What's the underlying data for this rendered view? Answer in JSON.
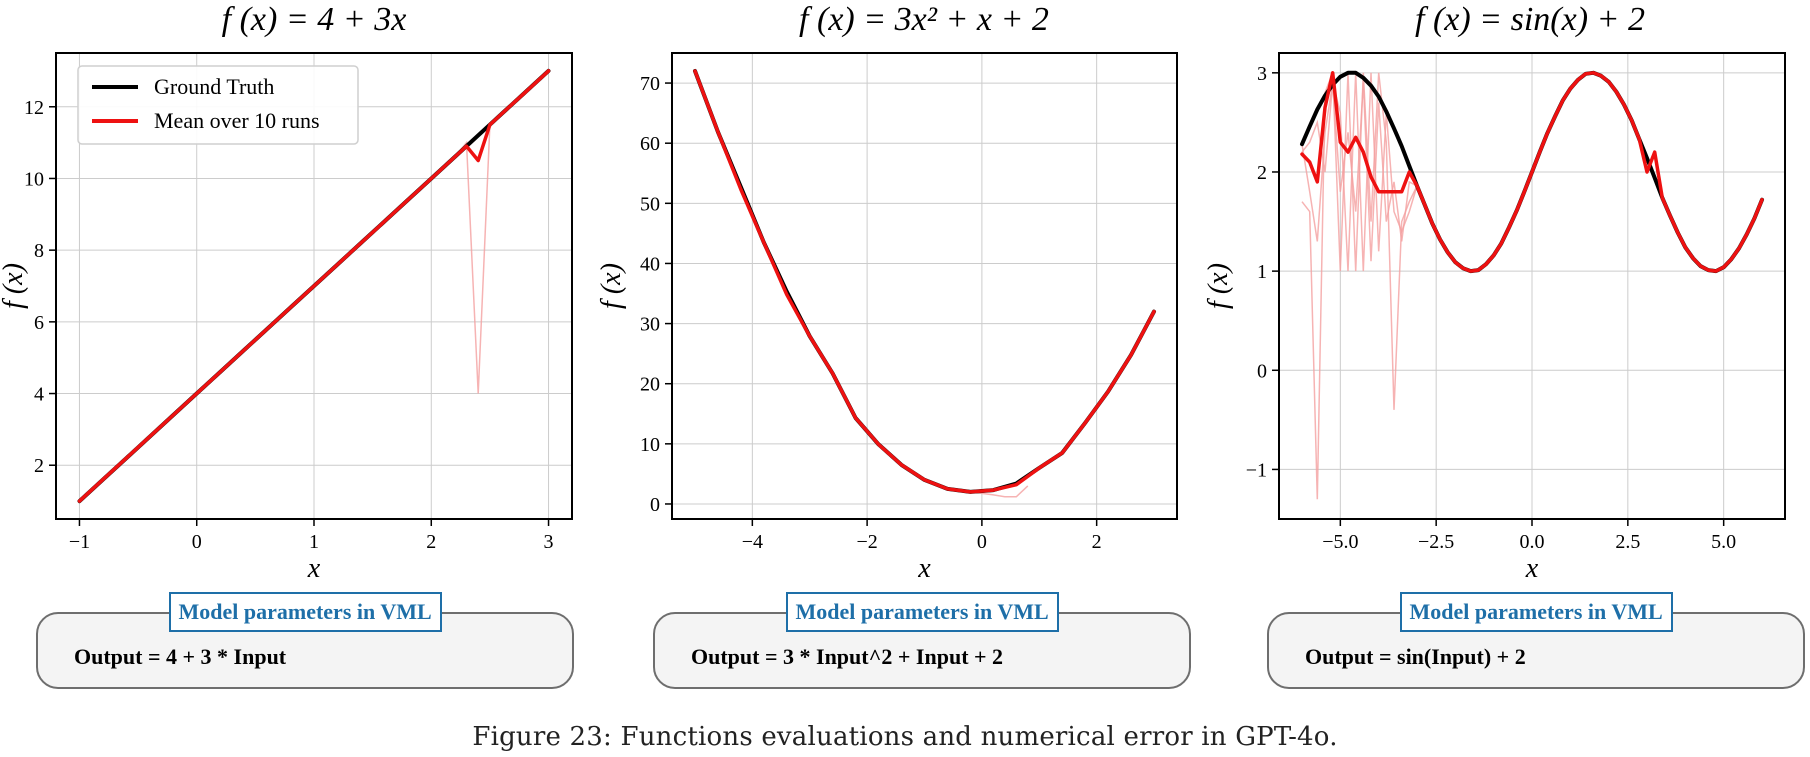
{
  "chart_data": [
    {
      "type": "line",
      "title_prefix": "f (x) = ",
      "title_formula": "4 + 3x",
      "xlabel": "x",
      "ylabel": "f (x)",
      "xlim": [
        -1.2,
        3.2
      ],
      "ylim": [
        0.5,
        13.5
      ],
      "xticks": [
        -1,
        0,
        1,
        2,
        3
      ],
      "yticks": [
        2,
        4,
        6,
        8,
        10,
        12
      ],
      "xtick_labels": [
        "−1",
        "0",
        "1",
        "2",
        "3"
      ],
      "ytick_labels": [
        "2",
        "4",
        "6",
        "8",
        "10",
        "12"
      ],
      "grid": true,
      "legend": {
        "placement": "top-left",
        "entries": [
          {
            "label": "Ground Truth",
            "color": "#000000"
          },
          {
            "label": "Mean over 10 runs",
            "color": "#ee1111"
          }
        ]
      },
      "series": [
        {
          "name": "Ground Truth",
          "color": "#000000",
          "x": [
            -1,
            -0.8,
            -0.6,
            -0.4,
            -0.2,
            0,
            0.2,
            0.4,
            0.6,
            0.8,
            1,
            1.2,
            1.4,
            1.6,
            1.8,
            2,
            2.2,
            2.4,
            2.6,
            2.8,
            3
          ],
          "y": [
            1,
            1.6,
            2.2,
            2.8,
            3.4,
            4,
            4.6,
            5.2,
            5.8,
            6.4,
            7,
            7.6,
            8.2,
            8.8,
            9.4,
            10,
            10.6,
            11.2,
            11.8,
            12.4,
            13
          ]
        },
        {
          "name": "Mean over 10 runs",
          "color": "#ee1111",
          "x": [
            -1,
            -0.8,
            -0.6,
            -0.4,
            -0.2,
            0,
            0.2,
            0.4,
            0.6,
            0.8,
            1,
            1.2,
            1.4,
            1.6,
            1.8,
            2,
            2.2,
            2.3,
            2.4,
            2.5,
            2.6,
            2.8,
            3
          ],
          "y": [
            1,
            1.6,
            2.2,
            2.8,
            3.4,
            4,
            4.6,
            5.2,
            5.8,
            6.4,
            7,
            7.6,
            8.2,
            8.8,
            9.4,
            10,
            10.6,
            10.9,
            10.5,
            11.5,
            11.8,
            12.4,
            13
          ]
        }
      ],
      "runs": [
        {
          "x": [
            2.2,
            2.3,
            2.4,
            2.5,
            2.6
          ],
          "y": [
            10.6,
            11.0,
            4.0,
            11.5,
            11.8
          ]
        }
      ],
      "parameters_title": "Model parameters in VML",
      "parameters_text": "Output = 4 + 3 * Input"
    },
    {
      "type": "line",
      "title_prefix": "f (x) = ",
      "title_formula": "3x² + x + 2",
      "xlabel": "x",
      "ylabel": "f (x)",
      "xlim": [
        -5.4,
        3.4
      ],
      "ylim": [
        -2.5,
        75
      ],
      "xticks": [
        -4,
        -2,
        0,
        2
      ],
      "yticks": [
        0,
        10,
        20,
        30,
        40,
        50,
        60,
        70
      ],
      "xtick_labels": [
        "−4",
        "−2",
        "0",
        "2"
      ],
      "ytick_labels": [
        "0",
        "10",
        "20",
        "30",
        "40",
        "50",
        "60",
        "70"
      ],
      "grid": true,
      "series": [
        {
          "name": "Ground Truth",
          "color": "#000000",
          "x": [
            -5,
            -4.6,
            -4.2,
            -3.8,
            -3.4,
            -3,
            -2.6,
            -2.2,
            -1.8,
            -1.4,
            -1,
            -0.6,
            -0.2,
            0.2,
            0.6,
            1,
            1.4,
            1.8,
            2.2,
            2.6,
            3
          ],
          "y": [
            72,
            61.9,
            52.7,
            43.5,
            35.3,
            27.9,
            21.7,
            14.3,
            9.9,
            6.5,
            4,
            2.5,
            2.0,
            2.3,
            3.4,
            6.0,
            8.5,
            13.5,
            18.7,
            24.8,
            32
          ]
        },
        {
          "name": "Mean over 10 runs",
          "color": "#ee1111",
          "x": [
            -5,
            -4.6,
            -4.2,
            -3.8,
            -3.4,
            -3,
            -2.6,
            -2.2,
            -1.8,
            -1.4,
            -1,
            -0.6,
            -0.2,
            0.2,
            0.6,
            1,
            1.4,
            1.8,
            2.2,
            2.6,
            3
          ],
          "y": [
            72,
            61.9,
            52.3,
            43.5,
            34.8,
            27.9,
            21.7,
            14.3,
            9.9,
            6.5,
            4,
            2.5,
            2.0,
            2.3,
            3.2,
            6.0,
            8.5,
            13.5,
            18.7,
            24.8,
            32
          ]
        }
      ],
      "runs": [
        {
          "x": [
            -0.2,
            0.2,
            0.4,
            0.6,
            0.8
          ],
          "y": [
            2.0,
            1.5,
            1.2,
            1.2,
            3.0
          ]
        }
      ],
      "parameters_title": "Model parameters in VML",
      "parameters_text": "Output = 3 * Input^2 + Input + 2"
    },
    {
      "type": "line",
      "title_prefix": "f (x) = ",
      "title_formula": "sin(x) + 2",
      "xlabel": "x",
      "ylabel": "f (x)",
      "xlim": [
        -6.6,
        6.6
      ],
      "ylim": [
        -1.5,
        3.2
      ],
      "xticks": [
        -5,
        -2.5,
        0,
        2.5,
        5
      ],
      "yticks": [
        -1,
        0,
        1,
        2,
        3
      ],
      "xtick_labels": [
        "−5.0",
        "−2.5",
        "0.0",
        "2.5",
        "5.0"
      ],
      "ytick_labels": [
        "−1",
        "0",
        "1",
        "2",
        "3"
      ],
      "grid": true,
      "series": [
        {
          "name": "Ground Truth",
          "color": "#000000",
          "x": [
            -6,
            -5.8,
            -5.6,
            -5.4,
            -5.2,
            -5,
            -4.8,
            -4.6,
            -4.4,
            -4.2,
            -4,
            -3.8,
            -3.6,
            -3.4,
            -3.2,
            -3,
            -2.8,
            -2.6,
            -2.4,
            -2.2,
            -2,
            -1.8,
            -1.6,
            -1.4,
            -1.2,
            -1,
            -0.8,
            -0.6,
            -0.4,
            -0.2,
            0,
            0.2,
            0.4,
            0.6,
            0.8,
            1,
            1.2,
            1.4,
            1.6,
            1.8,
            2,
            2.2,
            2.4,
            2.6,
            2.8,
            3,
            3.2,
            3.4,
            3.6,
            3.8,
            4,
            4.2,
            4.4,
            4.6,
            4.8,
            5,
            5.2,
            5.4,
            5.6,
            5.8,
            6
          ],
          "y": [
            2.28,
            2.46,
            2.63,
            2.77,
            2.88,
            2.96,
            3.0,
            3.0,
            2.95,
            2.87,
            2.76,
            2.61,
            2.44,
            2.26,
            2.06,
            1.86,
            1.67,
            1.48,
            1.32,
            1.19,
            1.09,
            1.03,
            1.0,
            1.01,
            1.07,
            1.16,
            1.28,
            1.44,
            1.61,
            1.8,
            2.0,
            2.2,
            2.39,
            2.56,
            2.72,
            2.84,
            2.93,
            2.99,
            3.0,
            2.97,
            2.91,
            2.81,
            2.68,
            2.52,
            2.33,
            2.14,
            1.94,
            1.74,
            1.56,
            1.39,
            1.24,
            1.13,
            1.05,
            1.01,
            1.0,
            1.04,
            1.12,
            1.23,
            1.37,
            1.53,
            1.72
          ]
        },
        {
          "name": "Mean over 10 runs",
          "color": "#ee1111",
          "x": [
            -6,
            -5.8,
            -5.6,
            -5.4,
            -5.2,
            -5,
            -4.8,
            -4.6,
            -4.4,
            -4.2,
            -4,
            -3.8,
            -3.6,
            -3.4,
            -3.2,
            -3,
            -2.8,
            -2.6,
            -2.4,
            -2.2,
            -2,
            -1.8,
            -1.6,
            -1.4,
            -1.2,
            -1,
            -0.8,
            -0.6,
            -0.4,
            -0.2,
            0,
            0.2,
            0.4,
            0.6,
            0.8,
            1,
            1.2,
            1.4,
            1.6,
            1.8,
            2,
            2.2,
            2.4,
            2.6,
            2.8,
            3,
            3.2,
            3.4,
            3.6,
            3.8,
            4,
            4.2,
            4.4,
            4.6,
            4.8,
            5,
            5.2,
            5.4,
            5.6,
            5.8,
            6
          ],
          "y": [
            2.18,
            2.1,
            1.9,
            2.65,
            3.0,
            2.3,
            2.2,
            2.35,
            2.2,
            1.95,
            1.8,
            1.8,
            1.8,
            1.8,
            2.0,
            1.86,
            1.67,
            1.48,
            1.32,
            1.19,
            1.09,
            1.03,
            1.0,
            1.01,
            1.07,
            1.16,
            1.28,
            1.44,
            1.61,
            1.8,
            2.0,
            2.2,
            2.39,
            2.56,
            2.72,
            2.84,
            2.93,
            2.99,
            3.0,
            2.97,
            2.91,
            2.81,
            2.68,
            2.52,
            2.33,
            2.0,
            2.2,
            1.74,
            1.56,
            1.39,
            1.24,
            1.13,
            1.05,
            1.01,
            1.0,
            1.04,
            1.12,
            1.23,
            1.37,
            1.53,
            1.72
          ]
        }
      ],
      "runs": [
        {
          "x": [
            -6,
            -5.8,
            -5.6,
            -5.4,
            -5.2,
            -5,
            -4.8,
            -4.6,
            -4.4,
            -4.2,
            -4,
            -3.8,
            -3.6,
            -3.4,
            -3.2,
            -3
          ],
          "y": [
            1.7,
            1.6,
            -1.3,
            2.8,
            3.0,
            1.0,
            3.0,
            1.0,
            3.0,
            1.5,
            3.0,
            2.3,
            -0.4,
            1.5,
            1.7,
            1.86
          ]
        },
        {
          "x": [
            -6,
            -5.8,
            -5.6,
            -5.4,
            -5.2,
            -5,
            -4.8,
            -4.6,
            -4.4,
            -4.2,
            -4,
            -3.8,
            -3.6,
            -3.4,
            -3.2,
            -3
          ],
          "y": [
            2.28,
            1.8,
            1.3,
            2.4,
            2.9,
            2.6,
            1.0,
            3.0,
            1.0,
            3.0,
            1.2,
            2.6,
            1.6,
            1.4,
            1.6,
            1.86
          ]
        },
        {
          "x": [
            -6,
            -5.8,
            -5.6,
            -5.4,
            -5.2,
            -5,
            -4.8,
            -4.6,
            -4.4,
            -4.2,
            -4,
            -3.8,
            -3.6,
            -3.4,
            -3.2,
            -3
          ],
          "y": [
            2.2,
            2.3,
            2.5,
            2.0,
            2.9,
            1.8,
            2.4,
            1.6,
            2.9,
            1.1,
            2.7,
            1.5,
            1.9,
            1.3,
            1.9,
            1.86
          ]
        }
      ],
      "parameters_title": "Model parameters in VML",
      "parameters_text": "Output = sin(Input) + 2"
    }
  ],
  "caption": "Figure 23: Functions evaluations and numerical error in GPT-4o.",
  "colors": {
    "ground_truth": "#000000",
    "mean": "#ee1111",
    "runs": "#f4a0a0",
    "param_title": "#1e6fa8",
    "grid": "#cccccc"
  }
}
